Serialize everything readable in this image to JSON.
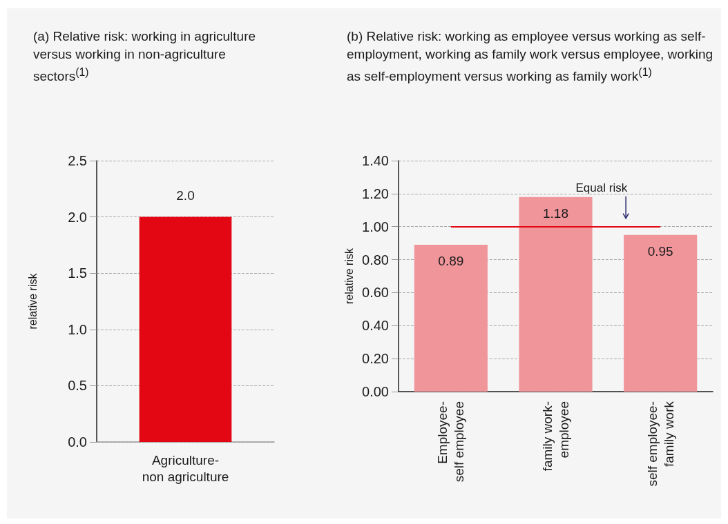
{
  "chart_data": [
    {
      "type": "bar",
      "title": "(a) Relative risk: working in agriculture versus working in non-agriculture sectors$^{(1)}$",
      "ylabel": "relative risk",
      "categories": [
        "Agriculture-\nnon agriculture"
      ],
      "values": [
        2.0
      ],
      "value_labels": [
        "2.0"
      ],
      "color": "#e30613",
      "ylim": [
        0,
        2.5
      ],
      "yticks": [
        {
          "value": 0,
          "label": "0.0"
        },
        {
          "value": 0.5,
          "label": "0.5"
        },
        {
          "value": 1,
          "label": "1.0"
        },
        {
          "value": 1.5,
          "label": "1.5"
        },
        {
          "value": 2,
          "label": "2.0"
        },
        {
          "value": 2.5,
          "label": "2.5"
        }
      ],
      "grid": "y"
    },
    {
      "type": "bar",
      "title": "(b) Relative risk: working as employee versus working as self-employment, working as family work versus employee, working as self-employment versus working as family work$^{(1)}$",
      "ylabel": "relative risk",
      "categories": [
        "Employee-\nself employee",
        "family work-\nemployee",
        "self employee-\nfamily work"
      ],
      "values": [
        0.89,
        1.18,
        0.95
      ],
      "data_labels": true,
      "color": "#f0969b",
      "ylim": [
        0,
        1.4
      ],
      "yticks": [
        {
          "value": 0,
          "label": "0.00"
        },
        {
          "value": 0.2,
          "label": "0.20"
        },
        {
          "value": 0.4,
          "label": "0.40"
        },
        {
          "value": 0.6,
          "label": "0.60"
        },
        {
          "value": 0.8,
          "label": "0.80"
        },
        {
          "value": 1,
          "label": "1.00"
        },
        {
          "value": 1.2,
          "label": "1.20"
        },
        {
          "value": 1.4,
          "label": "1.40"
        }
      ],
      "grid": "y",
      "ref_lines": [
        {
          "axis": "y",
          "value": 1,
          "label": "Equal risk",
          "color": "#e30613"
        }
      ]
    }
  ]
}
